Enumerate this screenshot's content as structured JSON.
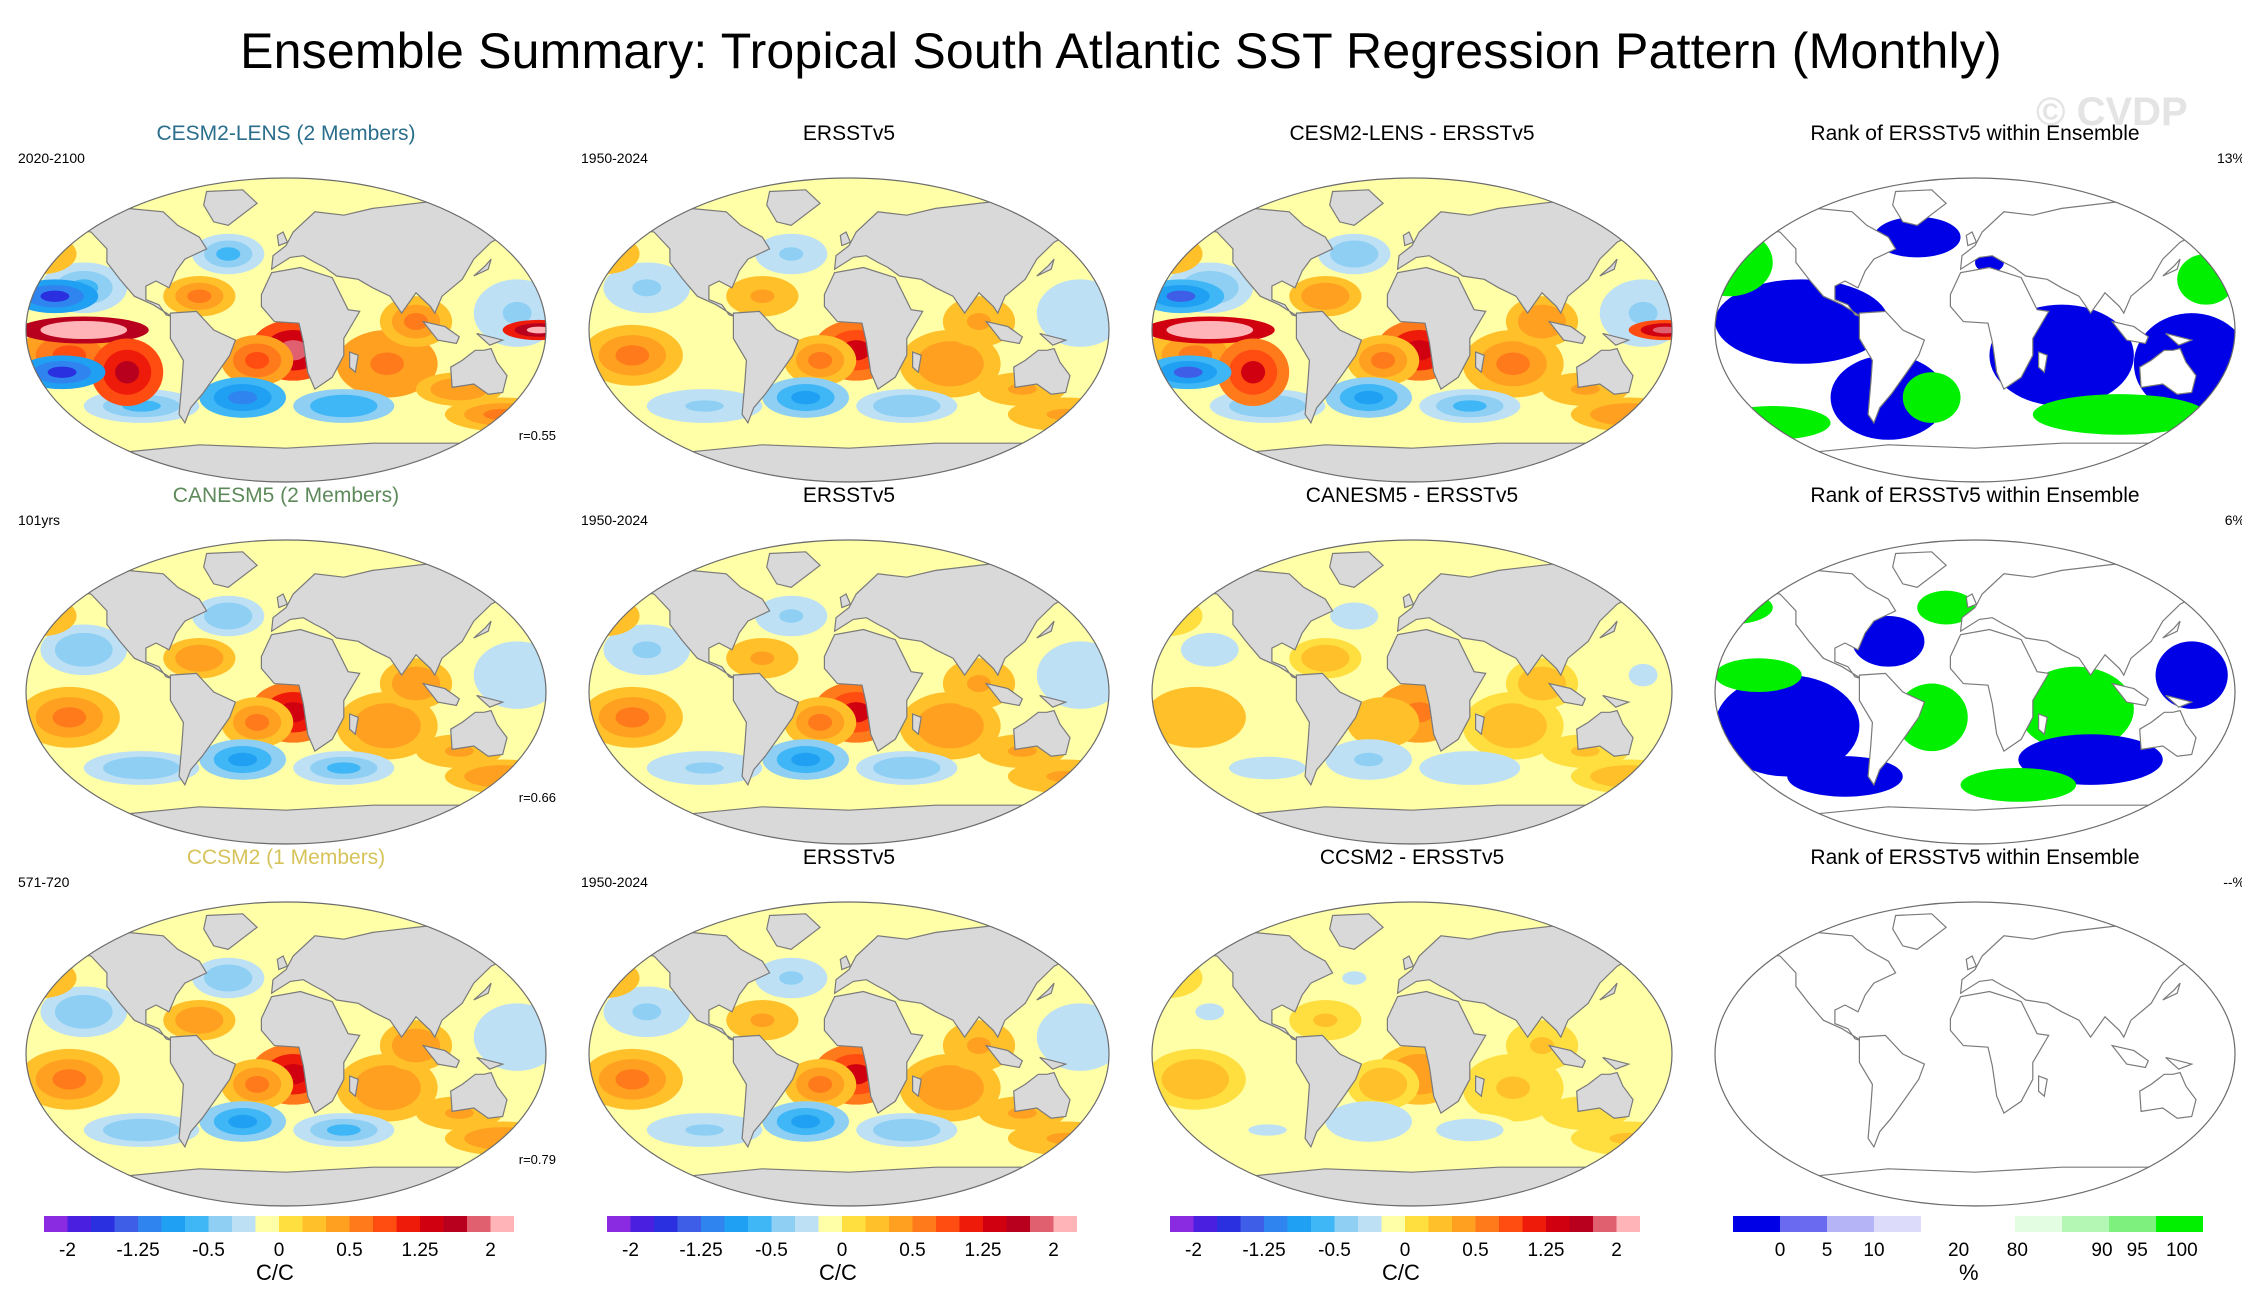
{
  "title": "Ensemble Summary: Tropical South Atlantic SST Regression Pattern (Monthly)",
  "watermark": "© CVDP",
  "colors": {
    "land": "#d9d9d9",
    "coast": "#7a7a7a",
    "cesm_title": "#2a6e8c",
    "canesm_title": "#5d8a5a",
    "ccsm_title": "#d6c35a",
    "rank_blue": "#0000e6",
    "rank_green": "#00f000"
  },
  "rows": [
    {
      "panels": [
        {
          "title": "CESM2-LENS (2 Members)",
          "left_label": "2020-2100",
          "right_label": "",
          "corr": "r=0.55"
        },
        {
          "title": "ERSSTv5",
          "left_label": "1950-2024",
          "right_label": "",
          "corr": ""
        },
        {
          "title": "CESM2-LENS - ERSSTv5",
          "left_label": "",
          "right_label": "",
          "corr": ""
        },
        {
          "title": "Rank of ERSSTv5 within Ensemble",
          "left_label": "",
          "right_label": "13%",
          "corr": ""
        }
      ]
    },
    {
      "panels": [
        {
          "title": "CANESM5 (2 Members)",
          "left_label": "101yrs",
          "right_label": "",
          "corr": "r=0.66"
        },
        {
          "title": "ERSSTv5",
          "left_label": "1950-2024",
          "right_label": "",
          "corr": ""
        },
        {
          "title": "CANESM5 - ERSSTv5",
          "left_label": "",
          "right_label": "",
          "corr": ""
        },
        {
          "title": "Rank of ERSSTv5 within Ensemble",
          "left_label": "",
          "right_label": "6%",
          "corr": ""
        }
      ]
    },
    {
      "panels": [
        {
          "title": "CCSM2 (1 Members)",
          "left_label": "571-720",
          "right_label": "",
          "corr": "r=0.79"
        },
        {
          "title": "ERSSTv5",
          "left_label": "1950-2024",
          "right_label": "",
          "corr": ""
        },
        {
          "title": "CCSM2 - ERSSTv5",
          "left_label": "",
          "right_label": "",
          "corr": ""
        },
        {
          "title": "Rank of ERSSTv5 within Ensemble",
          "left_label": "",
          "right_label": "--%",
          "corr": ""
        }
      ]
    }
  ],
  "colorbars": {
    "sst": {
      "unit": "C/C",
      "labels": [
        "-2",
        "-1.25",
        "-0.5",
        "0",
        "0.5",
        "1.25",
        "2"
      ],
      "colors": [
        "#8a2be2",
        "#4b1fe0",
        "#2a2fe0",
        "#3e5ee8",
        "#2f84ef",
        "#1fa0f2",
        "#3fb6f5",
        "#8ecff3",
        "#bde0f5",
        "#ffffa8",
        "#ffdf40",
        "#ffc02a",
        "#ffa020",
        "#ff7a1a",
        "#ff4d12",
        "#ee1a0a",
        "#d00010",
        "#b8001e",
        "#e06070",
        "#ffb4b8"
      ]
    },
    "rank": {
      "unit": "%",
      "labels": [
        "0",
        "5",
        "10",
        "20",
        "80",
        "90",
        "95",
        "100"
      ],
      "colors": [
        "#0000e6",
        "#6a6af0",
        "#b4b4f6",
        "#dcdcfa",
        "#ffffff",
        "#ffffff",
        "#e2fde2",
        "#b4f6b4",
        "#7ef07e",
        "#00f000"
      ]
    }
  },
  "chart_data": [
    {
      "type": "heatmap",
      "panel": "CESM2-LENS (2 Members)",
      "colorbar": "sst",
      "pattern_strength": 1.0,
      "pacific_warm": true
    },
    {
      "type": "heatmap",
      "panel": "ERSSTv5",
      "colorbar": "sst",
      "pattern_strength": 0.75,
      "pacific_warm": false
    },
    {
      "type": "heatmap",
      "panel": "CESM2-LENS - ERSSTv5",
      "colorbar": "sst",
      "pattern_strength": 0.85,
      "pacific_warm": true
    },
    {
      "type": "heatmap",
      "panel": "Rank of ERSSTv5 within Ensemble",
      "colorbar": "rank",
      "ensemble_rank_pct": 13
    },
    {
      "type": "heatmap",
      "panel": "CANESM5 (2 Members)",
      "colorbar": "sst",
      "pattern_strength": 0.8,
      "pacific_warm": false
    },
    {
      "type": "heatmap",
      "panel": "ERSSTv5",
      "colorbar": "sst",
      "pattern_strength": 0.75,
      "pacific_warm": false
    },
    {
      "type": "heatmap",
      "panel": "CANESM5 - ERSSTv5",
      "colorbar": "sst",
      "pattern_strength": 0.45,
      "pacific_warm": false
    },
    {
      "type": "heatmap",
      "panel": "Rank of ERSSTv5 within Ensemble",
      "colorbar": "rank",
      "ensemble_rank_pct": 6
    },
    {
      "type": "heatmap",
      "panel": "CCSM2 (1 Members)",
      "colorbar": "sst",
      "pattern_strength": 0.8,
      "pacific_warm": false
    },
    {
      "type": "heatmap",
      "panel": "ERSSTv5",
      "colorbar": "sst",
      "pattern_strength": 0.75,
      "pacific_warm": false
    },
    {
      "type": "heatmap",
      "panel": "CCSM2 - ERSSTv5",
      "colorbar": "sst",
      "pattern_strength": 0.35,
      "pacific_warm": false
    },
    {
      "type": "heatmap",
      "panel": "Rank of ERSSTv5 within Ensemble",
      "colorbar": "rank",
      "ensemble_rank_pct": null
    }
  ]
}
